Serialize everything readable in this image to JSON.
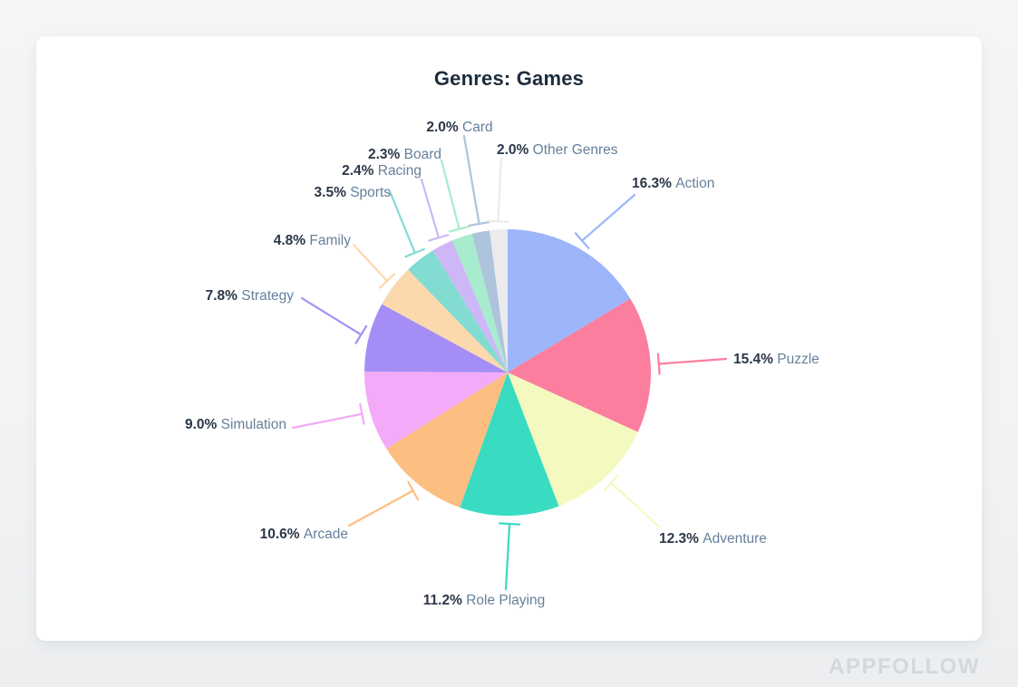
{
  "page": {
    "watermark": "APPFOLLOW"
  },
  "chart_data": {
    "type": "pie",
    "title": "Genres: Games",
    "unit": "%",
    "legend": "none",
    "label_format": "{value}% {label}",
    "start_angle": "top",
    "direction": "clockwise",
    "slices": [
      {
        "label": "Action",
        "value": 16.3,
        "color": "#9db5fb"
      },
      {
        "label": "Puzzle",
        "value": 15.4,
        "color": "#fb7e9e"
      },
      {
        "label": "Adventure",
        "value": 12.3,
        "color": "#f4f9c0"
      },
      {
        "label": "Role Playing",
        "value": 11.2,
        "color": "#39dcc0"
      },
      {
        "label": "Arcade",
        "value": 10.6,
        "color": "#fdbf81"
      },
      {
        "label": "Simulation",
        "value": 9.0,
        "color": "#f3aaf8"
      },
      {
        "label": "Strategy",
        "value": 7.8,
        "color": "#a48ef6"
      },
      {
        "label": "Family",
        "value": 4.8,
        "color": "#fcd9ad"
      },
      {
        "label": "Sports",
        "value": 3.5,
        "color": "#82dcd2"
      },
      {
        "label": "Racing",
        "value": 2.4,
        "color": "#cdb7f6"
      },
      {
        "label": "Board",
        "value": 2.3,
        "color": "#a6eccd"
      },
      {
        "label": "Card",
        "value": 2.0,
        "color": "#aec3dc"
      },
      {
        "label": "Other Genres",
        "value": 2.0,
        "color": "#ebebed"
      }
    ],
    "text_colors": {
      "percent": "#2b3748",
      "label": "#66809b",
      "title": "#1d2c3c"
    }
  }
}
